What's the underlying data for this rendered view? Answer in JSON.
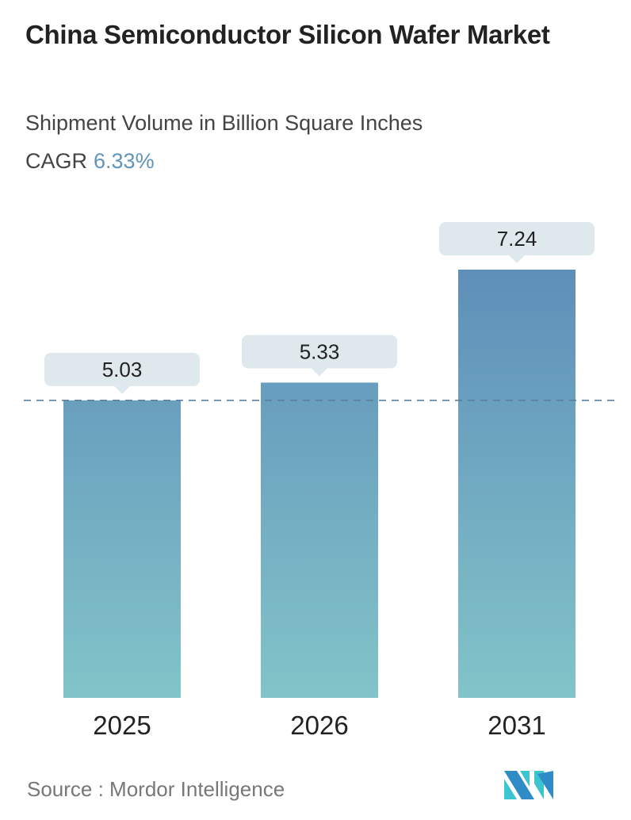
{
  "title": "China Semiconductor Silicon Wafer Market",
  "subtitle": "Shipment Volume in Billion Square Inches",
  "cagr_label": "CAGR",
  "cagr_value": "6.33%",
  "source": "Source :  Mordor Intelligence",
  "logo_text": "Mordor Intelligence",
  "colors": {
    "bar_top": "#5e8fb9",
    "bar_bottom": "#82c4c9",
    "label_box": "#dfe9ed",
    "accent": "#5f94bd"
  },
  "chart_data": {
    "type": "bar",
    "categories": [
      "2025",
      "2026",
      "2031"
    ],
    "values": [
      5.03,
      5.33,
      7.24
    ],
    "data_labels": [
      "5.03",
      "5.33",
      "7.24"
    ],
    "ylim": [
      0,
      7.24
    ],
    "reference_line": 5.03,
    "grid": false
  }
}
